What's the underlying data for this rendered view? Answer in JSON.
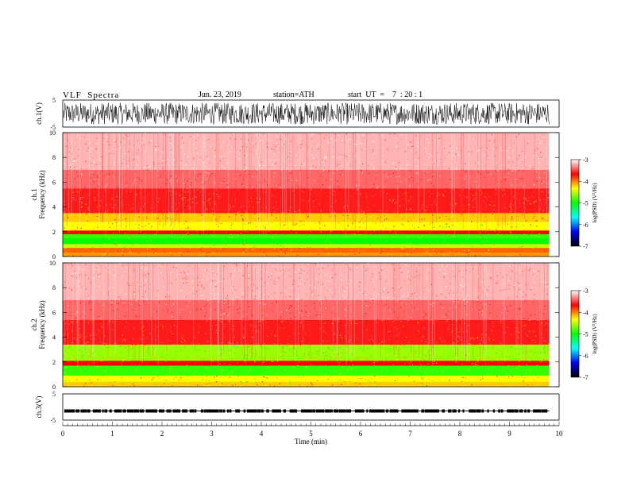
{
  "header": {
    "title": "VLF  Spectra",
    "date": "Jun. 23, 2019",
    "station": "station=ATH",
    "start_ut": "start  UT  =    7  : 20 : 1"
  },
  "colorbar": {
    "label": "log(PSD) (V²/Hz)",
    "ticks": [
      "-3",
      "-4",
      "-5",
      "-6",
      "-7"
    ],
    "colors": [
      "#ffffff",
      "#ff0000",
      "#ffff00",
      "#00ff00",
      "#00ffff",
      "#0000ff",
      "#000000"
    ]
  },
  "chart_data": [
    {
      "type": "line",
      "name": "ch1-waveform",
      "ylabel": "ch.1(V)",
      "ylim": [
        -5,
        5
      ],
      "yticks": [
        "5",
        "-5"
      ],
      "xlim": [
        0,
        10
      ],
      "description_amplitude": {
        "min": -4,
        "max": 4
      }
    },
    {
      "type": "heatmap",
      "name": "ch1-spectrogram",
      "ylabel_top": "ch.1",
      "ylabel": "Frequency  (kHz)",
      "ylim": [
        0,
        10
      ],
      "yticks": [
        "0",
        "2",
        "4",
        "6",
        "8",
        "10"
      ],
      "xlim": [
        0,
        10
      ],
      "data_end_min": 9.8,
      "bands_khz": [
        {
          "from": 0.0,
          "to": 0.3,
          "level": -4.3
        },
        {
          "from": 0.3,
          "to": 0.7,
          "level": -4.2
        },
        {
          "from": 0.7,
          "to": 1.0,
          "level": -4.6
        },
        {
          "from": 1.0,
          "to": 1.5,
          "level": -5.0
        },
        {
          "from": 1.5,
          "to": 1.8,
          "level": -4.9
        },
        {
          "from": 1.8,
          "to": 2.1,
          "level": -4.0
        },
        {
          "from": 2.1,
          "to": 2.8,
          "level": -4.5
        },
        {
          "from": 2.8,
          "to": 3.5,
          "level": -4.4
        },
        {
          "from": 3.5,
          "to": 5.5,
          "level": -3.9
        },
        {
          "from": 5.5,
          "to": 7.0,
          "level": -3.6
        },
        {
          "from": 7.0,
          "to": 10.0,
          "level": -3.3
        }
      ]
    },
    {
      "type": "heatmap",
      "name": "ch2-spectrogram",
      "ylabel_top": "ch.2",
      "ylabel": "Frequency  (kHz)",
      "ylim": [
        0,
        10
      ],
      "yticks": [
        "0",
        "2",
        "4",
        "6",
        "8",
        "10"
      ],
      "xlim": [
        0,
        10
      ],
      "data_end_min": 9.8,
      "bands_khz": [
        {
          "from": 0.0,
          "to": 0.4,
          "level": -4.4
        },
        {
          "from": 0.4,
          "to": 0.9,
          "level": -4.5
        },
        {
          "from": 0.9,
          "to": 1.7,
          "level": -4.9
        },
        {
          "from": 1.7,
          "to": 2.1,
          "level": -4.0
        },
        {
          "from": 2.1,
          "to": 3.4,
          "level": -4.7
        },
        {
          "from": 3.4,
          "to": 5.4,
          "level": -3.9
        },
        {
          "from": 5.4,
          "to": 7.0,
          "level": -3.6
        },
        {
          "from": 7.0,
          "to": 10.0,
          "level": -3.3
        }
      ]
    },
    {
      "type": "line",
      "name": "ch3-waveform",
      "ylabel": "ch.3(V)",
      "ylim": [
        -5,
        5
      ],
      "yticks": [
        "5",
        "-5"
      ],
      "xlim": [
        0,
        10
      ],
      "level_v": -1.5,
      "data_end_min": 9.8
    }
  ],
  "xaxis": {
    "label": "Time  (min)",
    "ticks": [
      "0",
      "1",
      "2",
      "3",
      "4",
      "5",
      "6",
      "7",
      "8",
      "9",
      "10"
    ]
  }
}
